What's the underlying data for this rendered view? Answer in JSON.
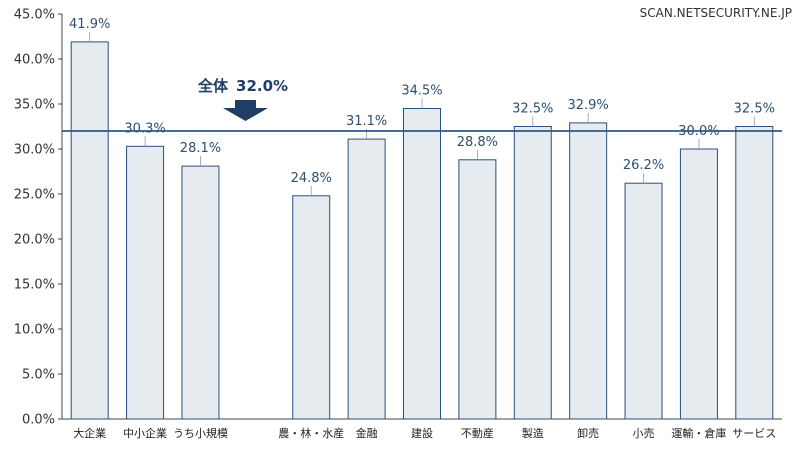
{
  "watermark": "SCAN.NETSECURITY.NE.JP",
  "chart_data": {
    "type": "bar",
    "categories": [
      "大企業",
      "中小企業",
      "うち小規模",
      "",
      "農・林・水産",
      "金融",
      "建設",
      "不動産",
      "製造",
      "卸売",
      "小売",
      "運輸・倉庫",
      "サービス"
    ],
    "values": [
      41.9,
      30.3,
      28.1,
      null,
      24.8,
      31.1,
      34.5,
      28.8,
      32.5,
      32.9,
      26.2,
      30.0,
      32.5
    ],
    "value_labels": [
      "41.9%",
      "30.3%",
      "28.1%",
      "",
      "24.8%",
      "31.1%",
      "34.5%",
      "28.8%",
      "32.5%",
      "32.9%",
      "26.2%",
      "30.0%",
      "32.5%"
    ],
    "yticks": [
      "0.0%",
      "5.0%",
      "10.0%",
      "15.0%",
      "20.0%",
      "25.0%",
      "30.0%",
      "35.0%",
      "40.0%",
      "45.0%"
    ],
    "ylim": [
      0,
      45
    ],
    "reference_line": {
      "value": 32.0,
      "label_prefix": "全体",
      "label_value": "32.0%"
    },
    "colors": {
      "bar_fill": "#e6ebf0",
      "bar_stroke": "#2b4f7e",
      "reference_line": "#2b5a8a",
      "arrow": "#1f3f66"
    }
  }
}
